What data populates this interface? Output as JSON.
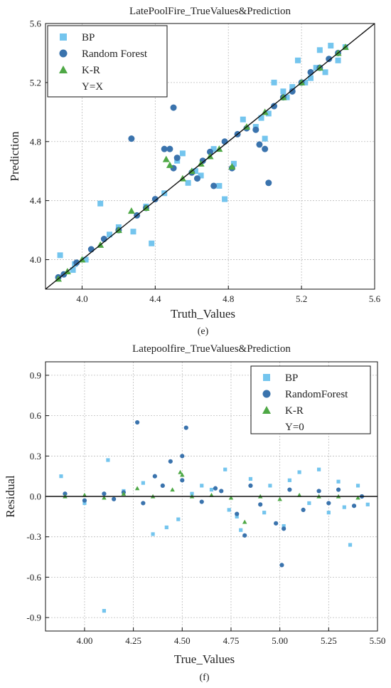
{
  "chart_data": [
    {
      "id": "e",
      "type": "scatter",
      "title": "LatePoolFire_TrueValues&Prediction",
      "xlabel": "Truth_Values",
      "ylabel": "Prediction",
      "caption": "(e)",
      "xlim": [
        3.8,
        5.6
      ],
      "ylim": [
        3.8,
        5.6
      ],
      "xticks": [
        "4.0",
        "4.4",
        "4.8",
        "5.2",
        "5.6"
      ],
      "yticks": [
        "4.0",
        "4.4",
        "4.8",
        "5.2",
        "5.6"
      ],
      "grid": true,
      "legend_position": "top-left",
      "colors": {
        "BP": "#74c5ee",
        "Random Forest": "#3a73ad",
        "K-R": "#4ea845",
        "line": "#111111"
      },
      "series": [
        {
          "name": "BP",
          "marker": "square",
          "points": [
            [
              3.88,
              4.03
            ],
            [
              3.95,
              3.93
            ],
            [
              4.02,
              4.0
            ],
            [
              4.1,
              4.38
            ],
            [
              4.2,
              4.22
            ],
            [
              4.28,
              4.19
            ],
            [
              4.38,
              4.11
            ],
            [
              4.45,
              4.45
            ],
            [
              4.52,
              4.67
            ],
            [
              4.58,
              4.52
            ],
            [
              4.65,
              4.57
            ],
            [
              4.72,
              4.75
            ],
            [
              4.75,
              4.5
            ],
            [
              4.78,
              4.41
            ],
            [
              4.83,
              4.65
            ],
            [
              4.88,
              4.95
            ],
            [
              4.95,
              4.9
            ],
            [
              5.02,
              4.99
            ],
            [
              5.05,
              5.2
            ],
            [
              5.1,
              5.14
            ],
            [
              5.15,
              5.17
            ],
            [
              5.22,
              5.2
            ],
            [
              5.25,
              5.23
            ],
            [
              5.3,
              5.42
            ],
            [
              5.33,
              5.27
            ],
            [
              5.36,
              5.45
            ],
            [
              5.4,
              5.35
            ],
            [
              5.44,
              5.44
            ],
            [
              5.18,
              5.35
            ],
            [
              5.0,
              4.82
            ],
            [
              4.35,
              4.36
            ],
            [
              4.62,
              4.6
            ],
            [
              3.96,
              3.97
            ],
            [
              4.15,
              4.17
            ],
            [
              4.98,
              4.96
            ],
            [
              5.28,
              5.3
            ],
            [
              5.12,
              5.1
            ],
            [
              4.55,
              4.72
            ]
          ]
        },
        {
          "name": "Random Forest",
          "marker": "circle",
          "points": [
            [
              3.87,
              3.88
            ],
            [
              3.9,
              3.9
            ],
            [
              3.97,
              3.98
            ],
            [
              4.05,
              4.07
            ],
            [
              4.12,
              4.14
            ],
            [
              4.2,
              4.2
            ],
            [
              4.27,
              4.82
            ],
            [
              4.3,
              4.3
            ],
            [
              4.35,
              4.35
            ],
            [
              4.4,
              4.41
            ],
            [
              4.45,
              4.75
            ],
            [
              4.5,
              5.03
            ],
            [
              4.52,
              4.69
            ],
            [
              4.5,
              4.62
            ],
            [
              4.6,
              4.59
            ],
            [
              4.66,
              4.67
            ],
            [
              4.7,
              4.73
            ],
            [
              4.72,
              4.5
            ],
            [
              4.78,
              4.8
            ],
            [
              4.85,
              4.85
            ],
            [
              4.9,
              4.89
            ],
            [
              4.95,
              4.88
            ],
            [
              5.0,
              4.75
            ],
            [
              5.02,
              4.52
            ],
            [
              5.05,
              5.04
            ],
            [
              5.1,
              5.1
            ],
            [
              5.15,
              5.14
            ],
            [
              5.2,
              5.2
            ],
            [
              5.25,
              5.27
            ],
            [
              5.3,
              5.3
            ],
            [
              5.35,
              5.36
            ],
            [
              5.4,
              5.4
            ],
            [
              4.82,
              4.62
            ],
            [
              4.48,
              4.75
            ],
            [
              4.97,
              4.78
            ],
            [
              4.63,
              4.55
            ]
          ]
        },
        {
          "name": "K-R",
          "marker": "triangle",
          "points": [
            [
              3.87,
              3.87
            ],
            [
              3.92,
              3.92
            ],
            [
              4.0,
              4.0
            ],
            [
              4.1,
              4.1
            ],
            [
              4.2,
              4.2
            ],
            [
              4.27,
              4.33
            ],
            [
              4.35,
              4.35
            ],
            [
              4.46,
              4.68
            ],
            [
              4.48,
              4.64
            ],
            [
              4.55,
              4.55
            ],
            [
              4.65,
              4.65
            ],
            [
              4.75,
              4.75
            ],
            [
              4.82,
              4.63
            ],
            [
              4.9,
              4.9
            ],
            [
              5.0,
              5.0
            ],
            [
              5.1,
              5.1
            ],
            [
              5.2,
              5.2
            ],
            [
              5.3,
              5.3
            ],
            [
              5.4,
              5.4
            ],
            [
              5.44,
              5.44
            ],
            [
              4.6,
              4.6
            ],
            [
              4.7,
              4.7
            ]
          ]
        },
        {
          "name": "Y=X",
          "type": "line",
          "points": [
            [
              3.8,
              3.8
            ],
            [
              5.6,
              5.6
            ]
          ]
        }
      ]
    },
    {
      "id": "f",
      "type": "scatter",
      "title": "Latepoolfire_TrueValues&Prediction",
      "xlabel": "True_Values",
      "ylabel": "Residual",
      "caption": "(f)",
      "xlim": [
        3.8,
        5.5
      ],
      "ylim": [
        -1.0,
        1.0
      ],
      "xticks": [
        "4.00",
        "4.25",
        "4.50",
        "4.75",
        "5.00",
        "5.25",
        "5.50"
      ],
      "yticks": [
        "0.9",
        "0.6",
        "0.3",
        "0.0",
        "-0.3",
        "-0.6",
        "-0.9"
      ],
      "grid": true,
      "legend_position": "top-right",
      "colors": {
        "BP": "#74c5ee",
        "RandomForest": "#3a73ad",
        "K-R": "#4ea845",
        "line": "#111111"
      },
      "series": [
        {
          "name": "BP",
          "marker": "square",
          "points": [
            [
              3.88,
              0.15
            ],
            [
              4.1,
              -0.85
            ],
            [
              4.12,
              0.27
            ],
            [
              4.3,
              0.1
            ],
            [
              4.35,
              -0.28
            ],
            [
              4.42,
              -0.23
            ],
            [
              4.48,
              -0.17
            ],
            [
              4.6,
              0.08
            ],
            [
              4.72,
              0.2
            ],
            [
              4.74,
              -0.1
            ],
            [
              4.78,
              -0.15
            ],
            [
              4.8,
              -0.25
            ],
            [
              4.85,
              0.13
            ],
            [
              4.92,
              -0.12
            ],
            [
              4.95,
              0.08
            ],
            [
              5.02,
              -0.22
            ],
            [
              5.05,
              0.12
            ],
            [
              5.1,
              0.18
            ],
            [
              5.15,
              -0.05
            ],
            [
              5.2,
              0.2
            ],
            [
              5.25,
              -0.12
            ],
            [
              5.3,
              0.11
            ],
            [
              5.33,
              -0.08
            ],
            [
              5.36,
              -0.36
            ],
            [
              5.4,
              0.08
            ],
            [
              4.0,
              -0.05
            ],
            [
              4.2,
              0.04
            ],
            [
              4.55,
              0.02
            ],
            [
              4.65,
              0.05
            ],
            [
              5.45,
              -0.06
            ]
          ]
        },
        {
          "name": "RandomForest",
          "marker": "circle",
          "points": [
            [
              3.9,
              0.02
            ],
            [
              4.0,
              -0.03
            ],
            [
              4.1,
              0.02
            ],
            [
              4.2,
              0.03
            ],
            [
              4.27,
              0.55
            ],
            [
              4.3,
              -0.05
            ],
            [
              4.36,
              0.15
            ],
            [
              4.44,
              0.26
            ],
            [
              4.5,
              0.3
            ],
            [
              4.52,
              0.51
            ],
            [
              4.5,
              0.12
            ],
            [
              4.6,
              -0.04
            ],
            [
              4.7,
              0.04
            ],
            [
              4.78,
              -0.13
            ],
            [
              4.82,
              -0.29
            ],
            [
              4.85,
              0.08
            ],
            [
              4.9,
              -0.06
            ],
            [
              4.98,
              -0.2
            ],
            [
              5.01,
              -0.51
            ],
            [
              5.02,
              -0.24
            ],
            [
              5.05,
              0.05
            ],
            [
              5.12,
              -0.1
            ],
            [
              5.2,
              0.04
            ],
            [
              5.25,
              -0.05
            ],
            [
              5.3,
              0.05
            ],
            [
              5.38,
              -0.07
            ],
            [
              5.42,
              0.0
            ],
            [
              4.4,
              0.08
            ],
            [
              4.67,
              0.06
            ],
            [
              4.15,
              -0.02
            ]
          ]
        },
        {
          "name": "K-R",
          "marker": "triangle",
          "points": [
            [
              3.9,
              0.0
            ],
            [
              4.0,
              0.01
            ],
            [
              4.1,
              -0.01
            ],
            [
              4.2,
              0.02
            ],
            [
              4.27,
              0.06
            ],
            [
              4.35,
              0.0
            ],
            [
              4.45,
              0.05
            ],
            [
              4.49,
              0.18
            ],
            [
              4.5,
              0.16
            ],
            [
              4.55,
              0.0
            ],
            [
              4.65,
              0.01
            ],
            [
              4.75,
              -0.01
            ],
            [
              4.82,
              -0.19
            ],
            [
              4.9,
              0.0
            ],
            [
              5.0,
              -0.02
            ],
            [
              5.1,
              0.01
            ],
            [
              5.2,
              0.0
            ],
            [
              5.3,
              0.0
            ],
            [
              5.4,
              -0.01
            ]
          ]
        },
        {
          "name": "Y=0",
          "type": "line",
          "points": [
            [
              3.8,
              0.0
            ],
            [
              5.5,
              0.0
            ]
          ]
        }
      ]
    }
  ]
}
